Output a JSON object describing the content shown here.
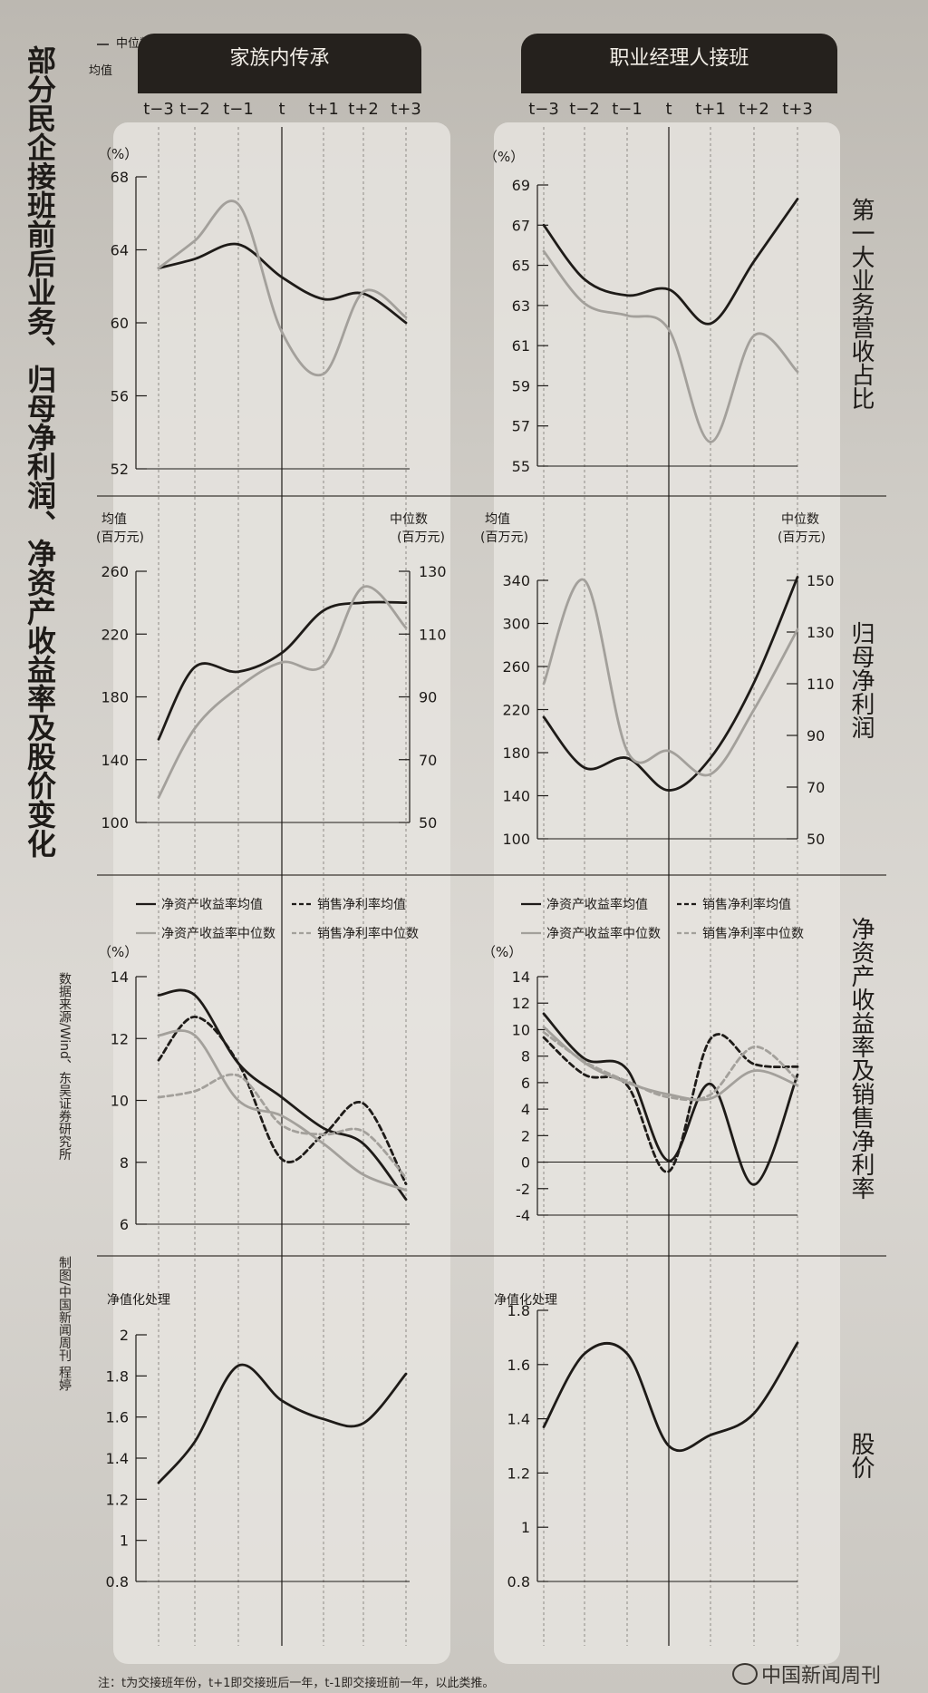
{
  "title": "部分民企接班前后业务、归母净利润、净资产收益率及股价变化",
  "source_text": "数据来源/Wind、东吴证券研究所",
  "credit_text": "制图/中国新闻周刊 程婷",
  "note": "注：t为交接班年份，t+1即交接班后一年，t-1即交接班前一年，以此类推。",
  "logo": "中国新闻周刊",
  "legend_top": {
    "mean": "均值",
    "median": "中位数"
  },
  "columns": [
    "家族内传承",
    "职业经理人接班"
  ],
  "periods": [
    "t−3",
    "t−2",
    "t−1",
    "t",
    "t+1",
    "t+2",
    "t+3"
  ],
  "row_labels": [
    "第一大业务营收占比",
    "归母净利润",
    "净资产收益率及销售净利率",
    "股价"
  ],
  "units": {
    "pct": "（%）",
    "mean_unit": "均值",
    "mean_unit2": "(百万元)",
    "median_unit": "中位数",
    "median_unit2": "(百万元)",
    "norm": "净值化处理"
  },
  "legend_roe": [
    "净资产收益率均值",
    "销售净利率均值",
    "净资产收益率中位数",
    "销售净利率中位数"
  ],
  "colors": {
    "mean": "#1e1b18",
    "median": "#a3a09b",
    "bg_panel": "#e6e4df",
    "header": "#25211d"
  },
  "chart_data": [
    {
      "type": "line",
      "row": "第一大业务营收占比",
      "column": "家族内传承",
      "x": [
        "t−3",
        "t−2",
        "t−1",
        "t",
        "t+1",
        "t+2",
        "t+3"
      ],
      "ylim": [
        52,
        68
      ],
      "yticks": [
        52,
        56,
        60,
        64,
        68
      ],
      "series": [
        {
          "name": "均值",
          "values": [
            63,
            63.5,
            64.3,
            62.5,
            61.3,
            61.6,
            60
          ]
        },
        {
          "name": "中位数",
          "values": [
            63,
            64.5,
            66.5,
            59.5,
            57.2,
            61.7,
            60.3
          ]
        }
      ]
    },
    {
      "type": "line",
      "row": "第一大业务营收占比",
      "column": "职业经理人接班",
      "x": [
        "t−3",
        "t−2",
        "t−1",
        "t",
        "t+1",
        "t+2",
        "t+3"
      ],
      "ylim": [
        55,
        69
      ],
      "yticks": [
        55,
        57,
        59,
        61,
        63,
        65,
        67,
        69
      ],
      "series": [
        {
          "name": "均值",
          "values": [
            67,
            64.3,
            63.5,
            63.8,
            62.1,
            65.2,
            68.3
          ]
        },
        {
          "name": "中位数",
          "values": [
            65.7,
            63.1,
            62.5,
            61.8,
            56.2,
            61.5,
            59.7
          ]
        }
      ]
    },
    {
      "type": "line",
      "row": "归母净利润",
      "column": "家族内传承",
      "x": [
        "t−3",
        "t−2",
        "t−1",
        "t",
        "t+1",
        "t+2",
        "t+3"
      ],
      "ylim": [
        100,
        260
      ],
      "yticks": [
        100,
        140,
        180,
        220,
        260
      ],
      "y2lim": [
        50,
        130
      ],
      "y2ticks": [
        50,
        70,
        90,
        110,
        130
      ],
      "series": [
        {
          "name": "均值",
          "axis": "left",
          "values": [
            153,
            199,
            196,
            208,
            235,
            240,
            240
          ]
        },
        {
          "name": "中位数",
          "axis": "right",
          "values": [
            58,
            80,
            93,
            101,
            100,
            125,
            112
          ]
        }
      ]
    },
    {
      "type": "line",
      "row": "归母净利润",
      "column": "职业经理人接班",
      "x": [
        "t−3",
        "t−2",
        "t−1",
        "t",
        "t+1",
        "t+2",
        "t+3"
      ],
      "ylim": [
        100,
        340
      ],
      "yticks": [
        100,
        140,
        180,
        220,
        260,
        300,
        340
      ],
      "y2lim": [
        50,
        150
      ],
      "y2ticks": [
        50,
        70,
        90,
        110,
        130,
        150
      ],
      "series": [
        {
          "name": "均值",
          "axis": "left",
          "values": [
            213,
            166,
            175,
            145,
            175,
            245,
            343
          ]
        },
        {
          "name": "中位数",
          "axis": "right",
          "values": [
            110,
            150,
            84,
            84,
            75,
            100,
            131
          ]
        }
      ]
    },
    {
      "type": "line",
      "row": "净资产收益率及销售净利率",
      "column": "家族内传承",
      "x": [
        "t−3",
        "t−2",
        "t−1",
        "t",
        "t+1",
        "t+2",
        "t+3"
      ],
      "ylim": [
        6,
        14
      ],
      "yticks": [
        6,
        8,
        10,
        12,
        14
      ],
      "series": [
        {
          "name": "净资产收益率均值",
          "values": [
            13.4,
            13.4,
            11.2,
            10.1,
            9.1,
            8.6,
            6.8
          ]
        },
        {
          "name": "销售净利率均值",
          "values": [
            11.3,
            12.7,
            11.2,
            8.1,
            8.9,
            9.9,
            7.3
          ]
        },
        {
          "name": "净资产收益率中位数",
          "values": [
            12.1,
            12.1,
            10,
            9.5,
            8.6,
            7.6,
            7.1
          ]
        },
        {
          "name": "销售净利率中位数",
          "values": [
            10.1,
            10.3,
            10.8,
            9.2,
            8.9,
            9,
            7.5
          ]
        }
      ]
    },
    {
      "type": "line",
      "row": "净资产收益率及销售净利率",
      "column": "职业经理人接班",
      "x": [
        "t−3",
        "t−2",
        "t−1",
        "t",
        "t+1",
        "t+2",
        "t+3"
      ],
      "ylim": [
        -4,
        14
      ],
      "yticks": [
        -4,
        -2,
        0,
        2,
        4,
        6,
        8,
        10,
        12,
        14
      ],
      "series": [
        {
          "name": "净资产收益率均值",
          "values": [
            11.2,
            7.8,
            7,
            0.1,
            5.9,
            -1.7,
            6.6
          ]
        },
        {
          "name": "销售净利率均值",
          "values": [
            9.4,
            6.6,
            5.8,
            -0.7,
            9.3,
            7.4,
            7.2
          ]
        },
        {
          "name": "净资产收益率中位数",
          "values": [
            10.2,
            7.5,
            6,
            5.1,
            4.8,
            6.9,
            5.8
          ]
        },
        {
          "name": "销售净利率中位数",
          "values": [
            9.8,
            7.6,
            6.1,
            4.9,
            5.1,
            8.7,
            6.2
          ]
        }
      ]
    },
    {
      "type": "line",
      "row": "股价",
      "column": "家族内传承",
      "x": [
        "t−3",
        "t−2",
        "t−1",
        "t",
        "t+1",
        "t+2",
        "t+3"
      ],
      "ylim": [
        0.8,
        2.0
      ],
      "yticks": [
        0.8,
        1.0,
        1.2,
        1.4,
        1.6,
        1.8,
        2.0
      ],
      "series": [
        {
          "name": "均值",
          "values": [
            1.28,
            1.48,
            1.85,
            1.68,
            1.59,
            1.57,
            1.81
          ]
        }
      ]
    },
    {
      "type": "line",
      "row": "股价",
      "column": "职业经理人接班",
      "x": [
        "t−3",
        "t−2",
        "t−1",
        "t",
        "t+1",
        "t+2",
        "t+3"
      ],
      "ylim": [
        0.8,
        1.8
      ],
      "yticks": [
        0.8,
        1.0,
        1.2,
        1.4,
        1.6,
        1.8
      ],
      "series": [
        {
          "name": "均值",
          "values": [
            1.37,
            1.64,
            1.64,
            1.3,
            1.34,
            1.42,
            1.68
          ]
        }
      ]
    }
  ]
}
